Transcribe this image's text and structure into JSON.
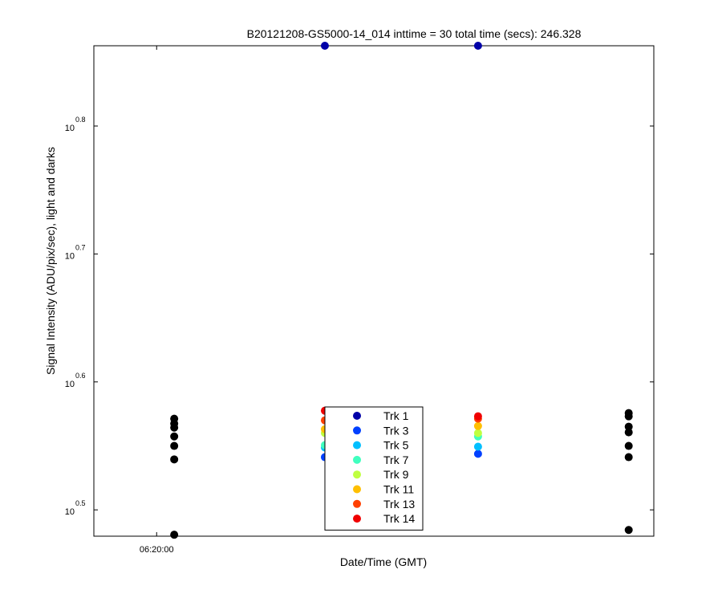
{
  "chart_data": {
    "type": "scatter",
    "title": "B20121208-GS5000-14_014 inttime = 30 total time (secs): 246.328",
    "x_label": "Date/Time (GMT)",
    "y_label": "Signal Intensity (ADU/pix/sec), light and darks",
    "y_scale": "log",
    "xlim": [
      22775,
      22998
    ],
    "xticks": [
      {
        "value": 22800,
        "label": "06:20:00"
      }
    ],
    "ylim": [
      3.016,
      7.29
    ],
    "yticks": [
      {
        "value": 3.1623,
        "label": "10",
        "exponent": "0.5"
      },
      {
        "value": 3.9811,
        "label": "10",
        "exponent": "0.6"
      },
      {
        "value": 5.0119,
        "label": "10",
        "exponent": "0.7"
      },
      {
        "value": 6.3096,
        "label": "10",
        "exponent": "0.8"
      }
    ],
    "grid": false,
    "legend": "bottom-center",
    "series": [
      {
        "name": "Trk 1",
        "color": "#0000a8",
        "x": [
          22867,
          22928
        ],
        "values": [
          7.29,
          7.29
        ]
      },
      {
        "name": "Trk 3",
        "color": "#0040ff",
        "x": [
          22867,
          22928
        ],
        "values": [
          3.477,
          3.498
        ]
      },
      {
        "name": "Trk 5",
        "color": "#00bfff",
        "x": [
          22867,
          22928
        ],
        "values": [
          3.538,
          3.543
        ]
      },
      {
        "name": "Trk 7",
        "color": "#40ffbf",
        "x": [
          22867,
          22928
        ],
        "values": [
          3.553,
          3.609
        ]
      },
      {
        "name": "Trk 9",
        "color": "#bfff40",
        "x": [
          22867,
          22928
        ],
        "values": [
          3.631,
          3.631
        ]
      },
      {
        "name": "Trk 11",
        "color": "#ffbf00",
        "x": [
          22867,
          22928
        ],
        "values": [
          3.656,
          3.677
        ]
      },
      {
        "name": "Trk 13",
        "color": "#ff4000",
        "x": [
          22867,
          22928
        ],
        "values": [
          3.715,
          3.726
        ]
      },
      {
        "name": "Trk 14",
        "color": "#f00000",
        "x": [
          22867,
          22928
        ],
        "values": [
          3.78,
          3.742
        ]
      },
      {
        "color": "#000000",
        "x": [
          22807,
          22807,
          22807,
          22807,
          22807,
          22807,
          22807,
          22988,
          22988,
          22988,
          22988,
          22988,
          22988,
          22988
        ],
        "values": [
          3.726,
          3.694,
          3.667,
          3.609,
          3.548,
          3.463,
          3.024,
          3.764,
          3.742,
          3.673,
          3.636,
          3.548,
          3.477,
          3.05
        ]
      }
    ]
  }
}
